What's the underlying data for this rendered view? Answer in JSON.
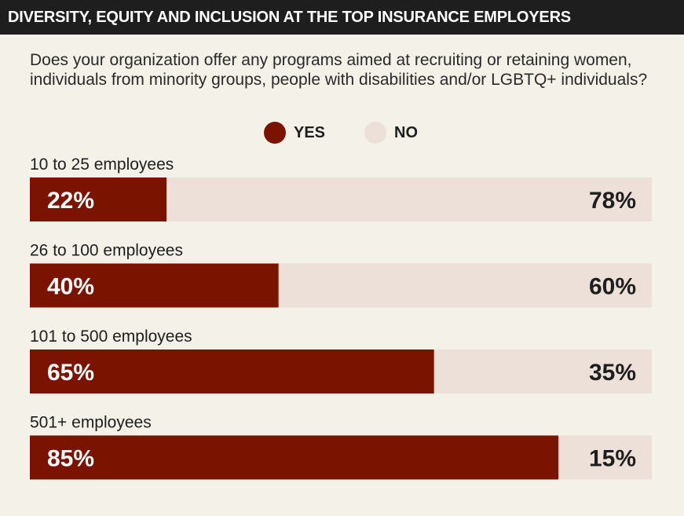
{
  "banner": {
    "title": "DIVERSITY, EQUITY AND INCLUSION AT THE TOP INSURANCE EMPLOYERS"
  },
  "question": "Does your organization offer any programs aimed at recruiting or retaining women, individuals from minority groups, people with disabilities and/or LGBTQ+ individuals?",
  "colors": {
    "yes": "#7a1400",
    "no": "#ede0d8",
    "yes_text": "#ffffff",
    "no_text": "#1e1e1e"
  },
  "chart_data": {
    "type": "bar",
    "orientation": "horizontal",
    "stacked": true,
    "title": "",
    "categories": [
      "10 to 25 employees",
      "26 to 100 employees",
      "101 to 500 employees",
      "501+ employees"
    ],
    "series": [
      {
        "name": "YES",
        "values": [
          22,
          40,
          65,
          85
        ],
        "labels": [
          "22%",
          "40%",
          "65%",
          "85%"
        ]
      },
      {
        "name": "NO",
        "values": [
          78,
          60,
          35,
          15
        ],
        "labels": [
          "78%",
          "60%",
          "35%",
          "15%"
        ]
      }
    ],
    "xlim": [
      0,
      100
    ],
    "grid": false,
    "legend": "top-center"
  }
}
